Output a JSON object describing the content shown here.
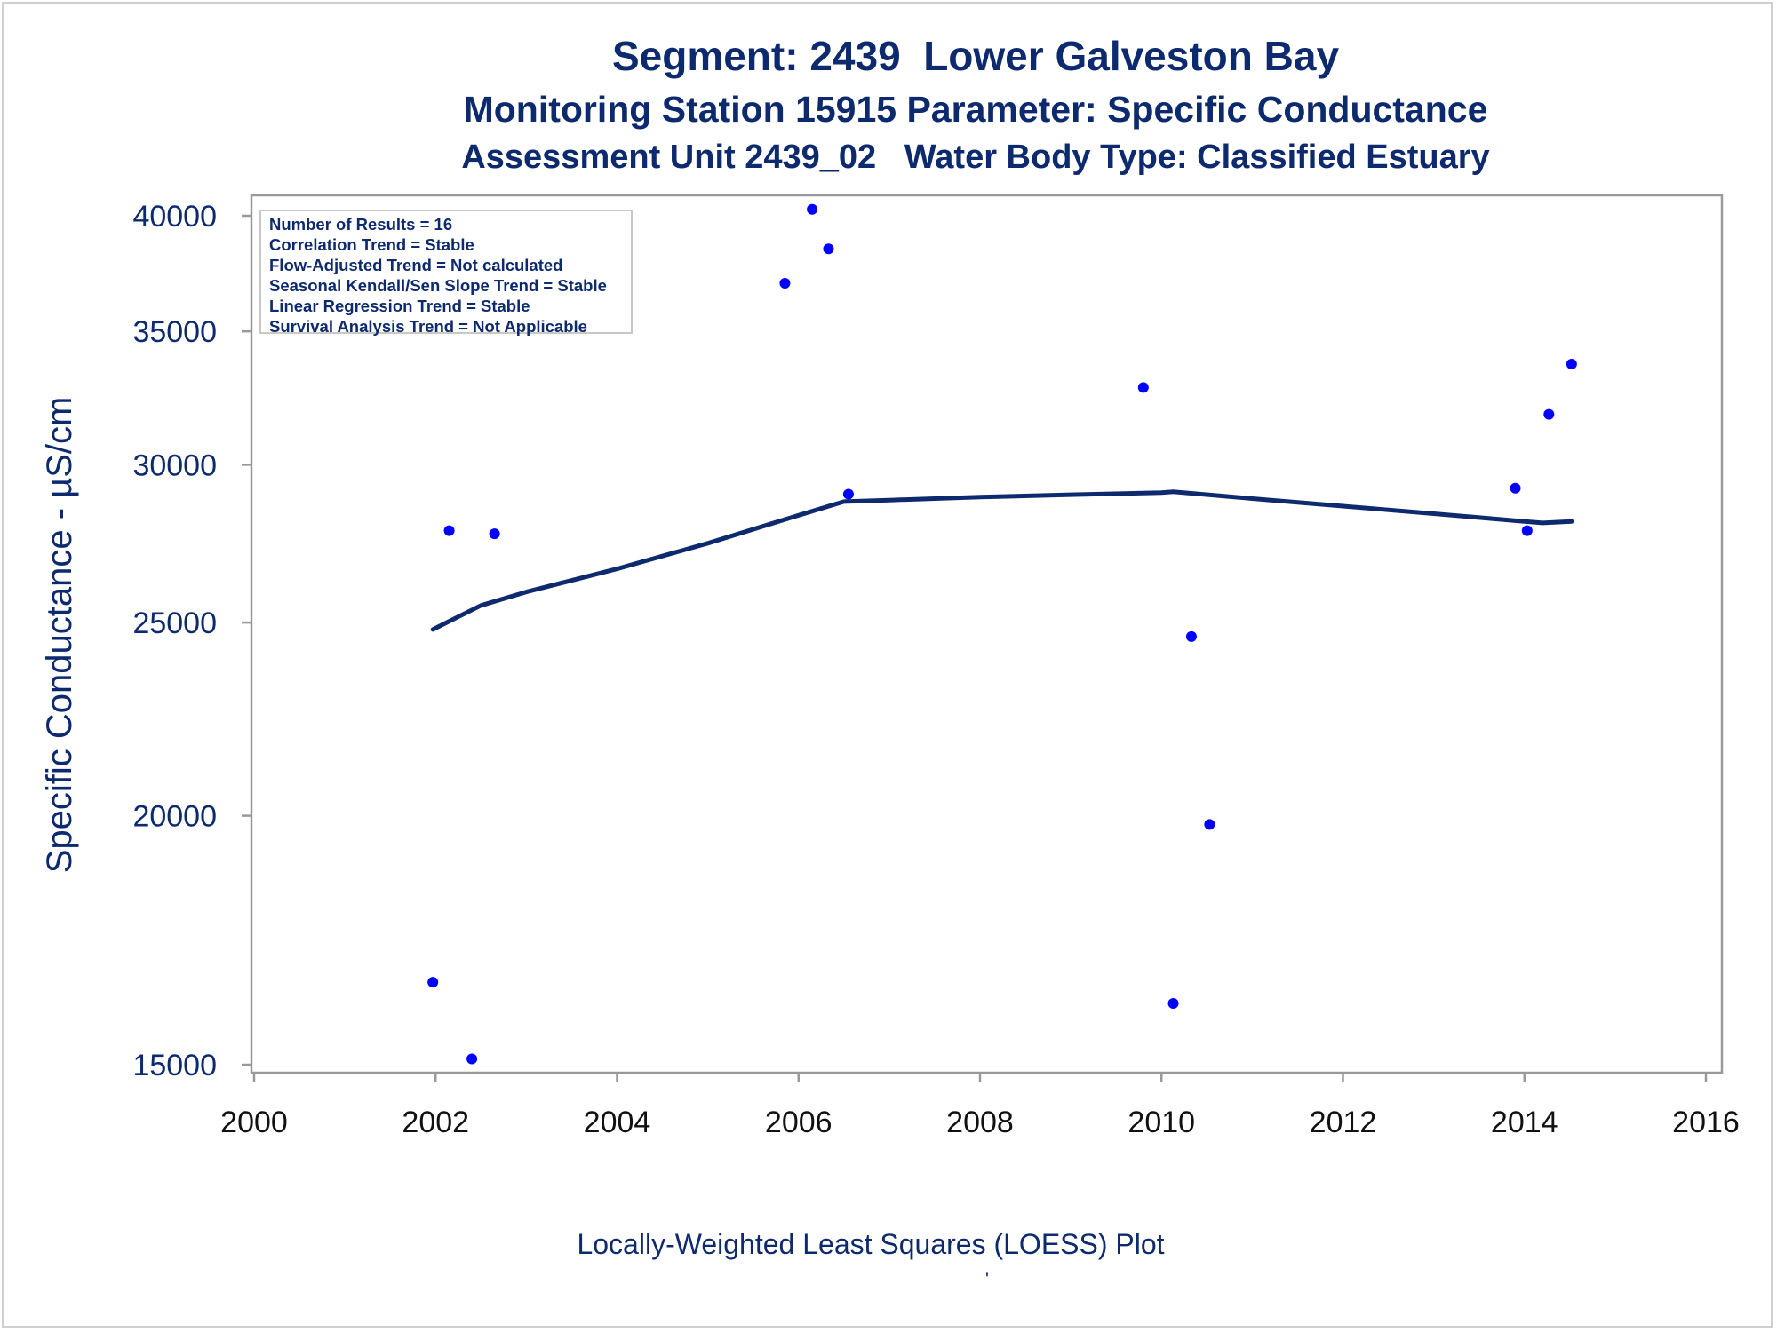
{
  "titles": {
    "line1": "Segment: 2439  Lower Galveston Bay",
    "line2": "Monitoring Station 15915 Parameter: Specific Conductance",
    "line3": "Assessment Unit 2439_02   Water Body Type: Classified Estuary"
  },
  "stats_box": [
    "Number of Results = 16",
    "Correlation Trend = Stable",
    "Flow-Adjusted Trend = Not calculated",
    "Seasonal Kendall/Sen Slope Trend = Stable",
    "Linear Regression Trend = Stable",
    "Survival Analysis Trend = Not Applicable"
  ],
  "footer_mark": "'",
  "colors": {
    "text": "#0d2a6e",
    "points": "#0000ff",
    "loess": "#0d2a6e",
    "axis": "#999999"
  },
  "chart_data": {
    "type": "scatter",
    "xlabel": "Locally-Weighted Least Squares (LOESS) Plot",
    "ylabel": "Specific Conductance -  µS/cm",
    "xlim": [
      2000,
      2016
    ],
    "xticks": [
      2000,
      2002,
      2004,
      2006,
      2008,
      2010,
      2012,
      2014,
      2016
    ],
    "ylim": [
      15000,
      40000
    ],
    "yticks": [
      15000,
      20000,
      25000,
      30000,
      35000,
      40000
    ],
    "y_scale": "log",
    "series": [
      {
        "kind": "points",
        "x": [
          2001.97,
          2002.15,
          2002.4,
          2002.65,
          2005.85,
          2006.15,
          2006.33,
          2006.55,
          2009.8,
          2010.13,
          2010.33,
          2010.53,
          2013.9,
          2014.03,
          2014.27,
          2014.52
        ],
        "y": [
          16500,
          27800,
          15100,
          27700,
          37000,
          40300,
          38500,
          29000,
          32800,
          16100,
          24600,
          19800,
          29200,
          27800,
          31800,
          33700
        ]
      },
      {
        "kind": "loess",
        "x": [
          2001.97,
          2002.5,
          2003.0,
          2004.0,
          2005.0,
          2006.0,
          2006.5,
          2007.0,
          2008.0,
          2009.0,
          2010.0,
          2010.13,
          2011.0,
          2012.0,
          2013.0,
          2014.0,
          2014.2,
          2014.52
        ],
        "y": [
          24800,
          25500,
          25900,
          26600,
          27400,
          28300,
          28750,
          28800,
          28900,
          28980,
          29050,
          29080,
          28850,
          28600,
          28350,
          28100,
          28050,
          28100
        ]
      }
    ]
  }
}
